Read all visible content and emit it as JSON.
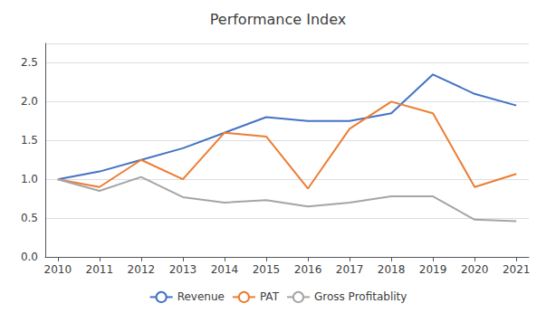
{
  "chart_data": {
    "type": "line",
    "title": "Performance Index",
    "x": [
      2010,
      2011,
      2012,
      2013,
      2014,
      2015,
      2016,
      2017,
      2018,
      2019,
      2020,
      2021
    ],
    "series": [
      {
        "name": "Revenue",
        "color": "#4472C4",
        "values": [
          1.0,
          1.1,
          1.25,
          1.4,
          1.6,
          1.8,
          1.75,
          1.75,
          1.85,
          2.35,
          2.1,
          1.95
        ]
      },
      {
        "name": "PAT",
        "color": "#ED7D31",
        "values": [
          1.0,
          0.9,
          1.25,
          1.0,
          1.6,
          1.55,
          0.88,
          1.65,
          2.0,
          1.85,
          0.9,
          1.07
        ]
      },
      {
        "name": "Gross Profitablity",
        "color": "#A5A5A5",
        "values": [
          1.0,
          0.85,
          1.03,
          0.77,
          0.7,
          0.73,
          0.65,
          0.7,
          0.78,
          0.78,
          0.48,
          0.46
        ]
      }
    ],
    "xlim": [
      2009.7,
      2021.3
    ],
    "xticks": [
      2010,
      2011,
      2012,
      2013,
      2014,
      2015,
      2016,
      2017,
      2018,
      2019,
      2020,
      2021
    ],
    "ylim": [
      0.0,
      2.75
    ],
    "yticks": [
      {
        "value": 0.0,
        "label": "0.0"
      },
      0.5,
      {
        "value": 1.0,
        "label": "1.0"
      },
      1.5,
      {
        "value": 2.0,
        "label": "2.0"
      },
      2.5
    ],
    "grid": true,
    "legend": "bottom"
  }
}
